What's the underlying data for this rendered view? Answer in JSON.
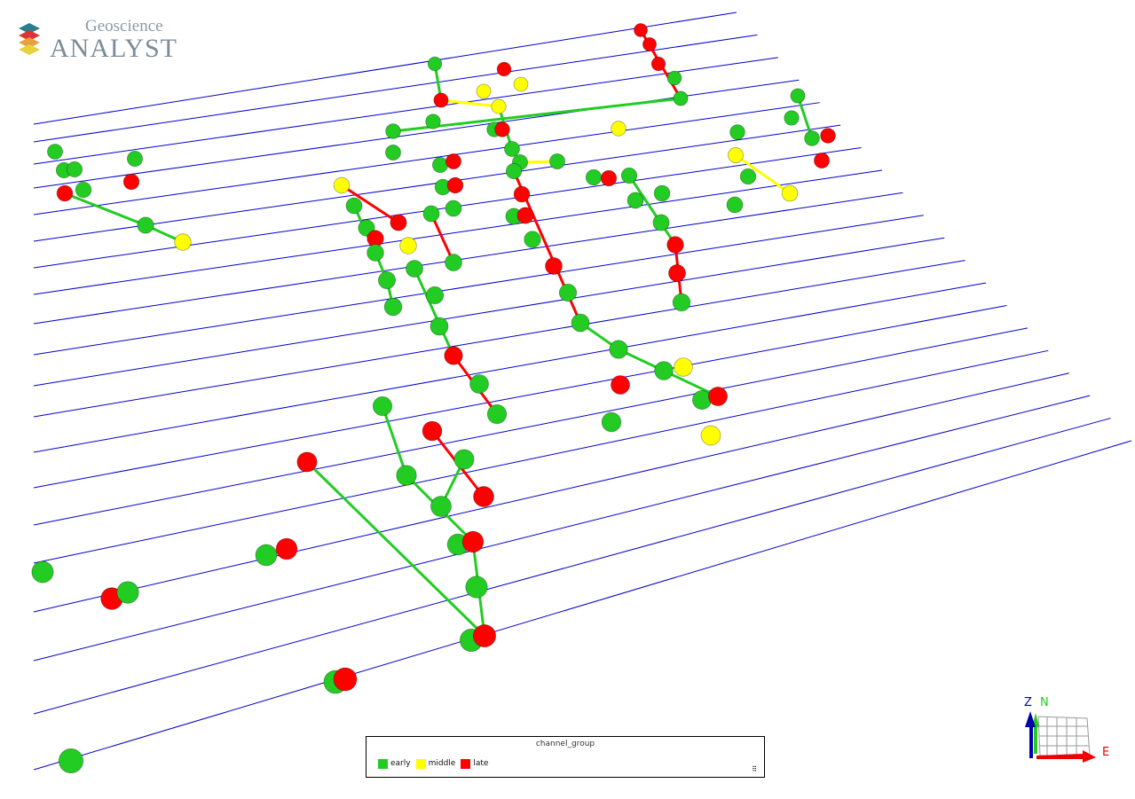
{
  "app": {
    "logo_line1": "Geoscience",
    "logo_line2": "ANALYST"
  },
  "legend": {
    "title": "channel_group",
    "items": [
      {
        "label": "early",
        "color": "#22cc22"
      },
      {
        "label": "middle",
        "color": "#ffff00"
      },
      {
        "label": "late",
        "color": "#ff0000"
      }
    ]
  },
  "axes": {
    "z_label": "Z",
    "n_label": "N",
    "e_label": "E"
  },
  "colors": {
    "profile_line": "#0000cc",
    "early": "#22cc22",
    "middle": "#ffff00",
    "late": "#ff0000"
  }
}
